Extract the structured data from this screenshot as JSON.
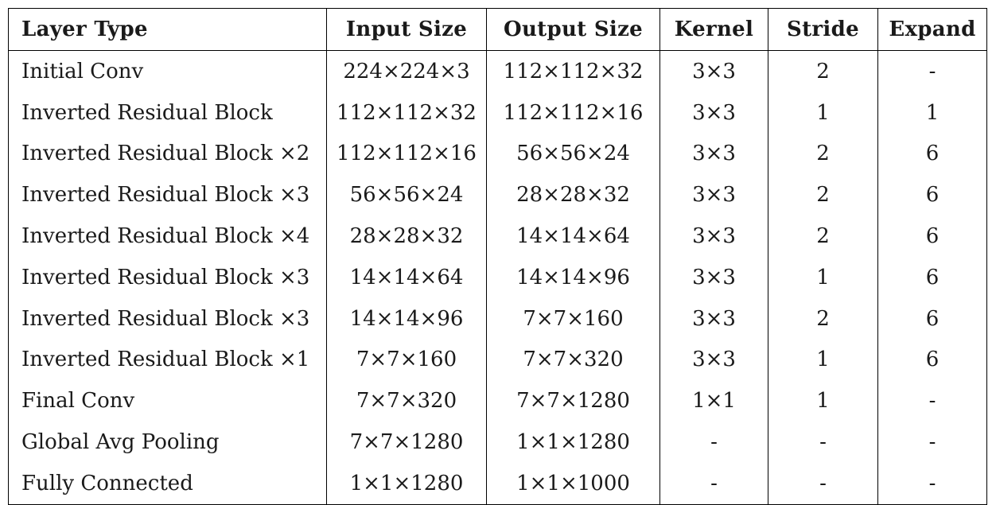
{
  "table": {
    "headers": [
      "Layer Type",
      "Input Size",
      "Output Size",
      "Kernel",
      "Stride",
      "Expand"
    ],
    "rows": [
      [
        "Initial Conv",
        "224×224×3",
        "112×112×32",
        "3×3",
        "2",
        "-"
      ],
      [
        "Inverted Residual Block",
        "112×112×32",
        "112×112×16",
        "3×3",
        "1",
        "1"
      ],
      [
        "Inverted Residual Block ×2",
        "112×112×16",
        "56×56×24",
        "3×3",
        "2",
        "6"
      ],
      [
        "Inverted Residual Block ×3",
        "56×56×24",
        "28×28×32",
        "3×3",
        "2",
        "6"
      ],
      [
        "Inverted Residual Block ×4",
        "28×28×32",
        "14×14×64",
        "3×3",
        "2",
        "6"
      ],
      [
        "Inverted Residual Block ×3",
        "14×14×64",
        "14×14×96",
        "3×3",
        "1",
        "6"
      ],
      [
        "Inverted Residual Block ×3",
        "14×14×96",
        "7×7×160",
        "3×3",
        "2",
        "6"
      ],
      [
        "Inverted Residual Block ×1",
        "7×7×160",
        "7×7×320",
        "3×3",
        "1",
        "6"
      ],
      [
        "Final Conv",
        "7×7×320",
        "7×7×1280",
        "1×1",
        "1",
        "-"
      ],
      [
        "Global Avg Pooling",
        "7×7×1280",
        "1×1×1280",
        "-",
        "-",
        "-"
      ],
      [
        "Fully Connected",
        "1×1×1280",
        "1×1×1000",
        "-",
        "-",
        "-"
      ]
    ]
  }
}
